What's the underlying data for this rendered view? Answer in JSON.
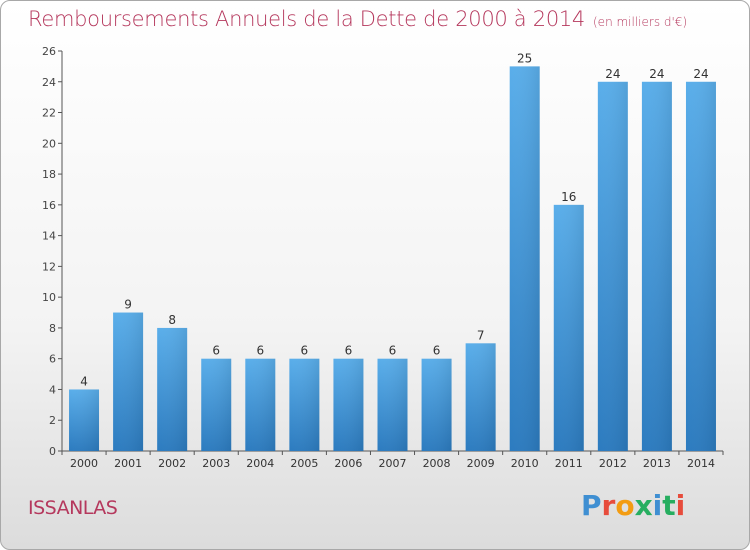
{
  "chart_data": {
    "type": "bar",
    "title": "Remboursements Annuels de la Dette de 2000 à 2014",
    "subtitle": "(en milliers d'€)",
    "categories": [
      "2000",
      "2001",
      "2002",
      "2003",
      "2004",
      "2005",
      "2006",
      "2007",
      "2008",
      "2009",
      "2010",
      "2011",
      "2012",
      "2013",
      "2014"
    ],
    "values": [
      4,
      9,
      8,
      6,
      6,
      6,
      6,
      6,
      6,
      7,
      25,
      16,
      24,
      24,
      24
    ],
    "ylim": [
      0,
      26
    ],
    "yticks": [
      0,
      2,
      4,
      6,
      8,
      10,
      12,
      14,
      16,
      18,
      20,
      22,
      24,
      26
    ],
    "grid": false,
    "bar_color": "#4a9bd9",
    "title_color": "#b5385d"
  },
  "footer": {
    "city": "ISSANLAS",
    "logo_text": "Proxiti",
    "logo_colors": [
      "#3f8fd2",
      "#e74c3c",
      "#f39c12",
      "#27ae60",
      "#3f8fd2",
      "#27ae60",
      "#e74c3c"
    ]
  }
}
